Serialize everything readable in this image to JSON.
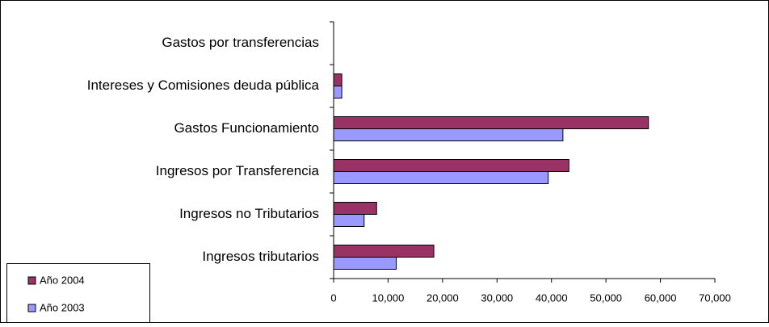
{
  "chart_data": {
    "type": "barh",
    "categories": [
      "Ingresos tributarios",
      "Ingresos no Tributarios",
      "Ingresos por Transferencia",
      "Gastos Funcionamiento",
      "Intereses y Comisiones deuda pública",
      "Gastos por transferencias"
    ],
    "series": [
      {
        "name": "Año 2004",
        "color": "#993366",
        "values": [
          18400,
          7900,
          43200,
          57800,
          1500,
          0
        ]
      },
      {
        "name": "Año 2003",
        "color": "#9999ff",
        "values": [
          11500,
          5600,
          39400,
          42100,
          1500,
          0
        ]
      }
    ],
    "xlim": [
      0,
      70000
    ],
    "xticks": [
      0,
      {
        "value": 10000,
        "label": "10,000"
      },
      {
        "value": 20000,
        "label": "20,000"
      },
      {
        "value": 30000,
        "label": "30,000"
      },
      {
        "value": 40000,
        "label": "40,000"
      },
      {
        "value": 50000,
        "label": "50,000"
      },
      {
        "value": 60000,
        "label": "60,000"
      },
      {
        "value": 70000,
        "label": "70,000"
      }
    ]
  }
}
